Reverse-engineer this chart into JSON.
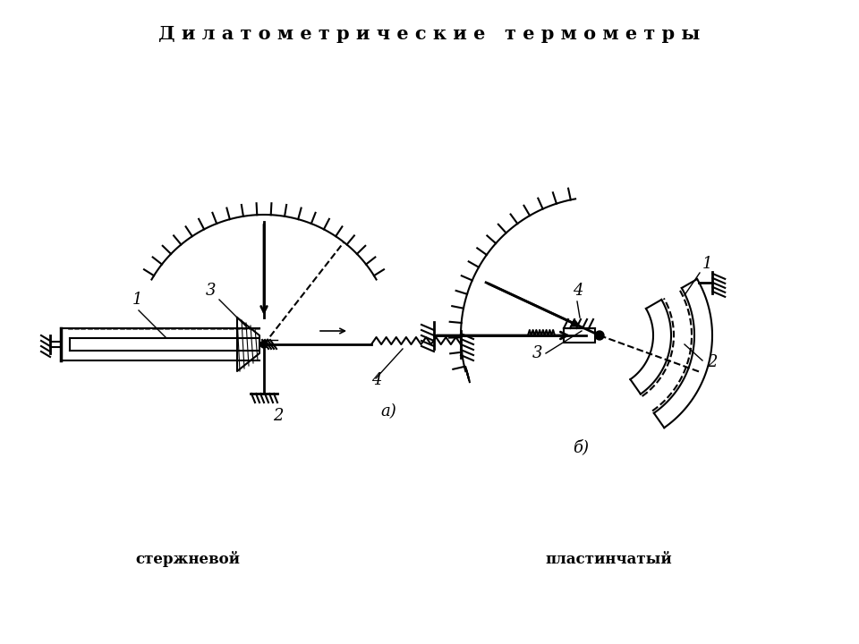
{
  "title": "Д и л а т о м е т р и ч е с к и е   т е р м о м е т р ы",
  "label_a": "стержневой",
  "label_b": "пластинчатый",
  "bg_color": "#ffffff",
  "line_color": "#000000",
  "title_fontsize": 15,
  "label_fontsize": 12
}
